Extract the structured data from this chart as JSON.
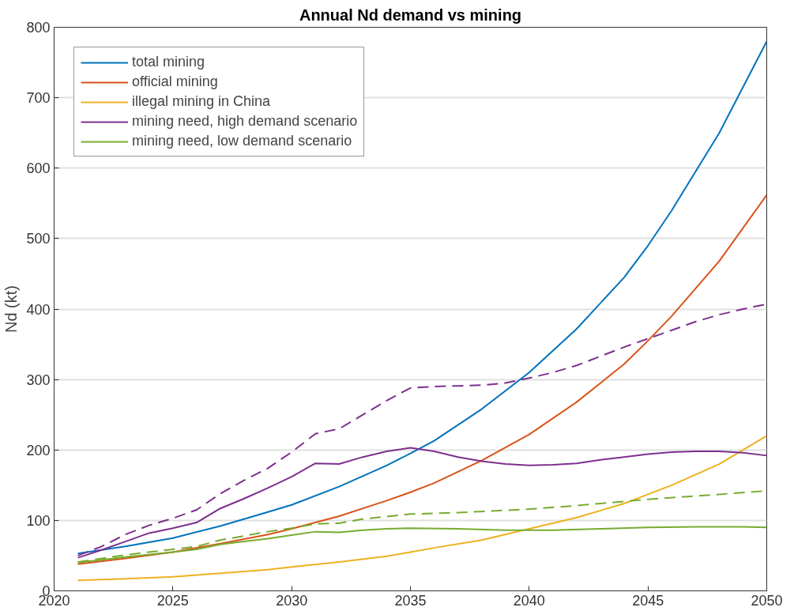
{
  "chart_data": {
    "type": "line",
    "title": "Annual Nd demand vs mining",
    "ylabel": "Nd (kt)",
    "xlim": [
      2020,
      2050
    ],
    "ylim": [
      0,
      800
    ],
    "xticks": [
      2020,
      2025,
      2030,
      2035,
      2040,
      2045,
      2050
    ],
    "yticks": [
      0,
      100,
      200,
      300,
      400,
      500,
      600,
      700,
      800
    ],
    "grid": "y",
    "legend": "top left",
    "line_style": "solid",
    "series": [
      {
        "name": "total mining",
        "color": "#0072bd",
        "x": [
          2021,
          2023,
          2025,
          2027,
          2029,
          2030,
          2032,
          2034,
          2035,
          2036,
          2038,
          2040,
          2042,
          2044,
          2045,
          2046,
          2048,
          2050
        ],
        "values": [
          53,
          63,
          75,
          92,
          112,
          122,
          148,
          178,
          195,
          213,
          258,
          310,
          372,
          445,
          490,
          540,
          650,
          780
        ]
      },
      {
        "name": "official mining",
        "color": "#d95319",
        "x": [
          2021,
          2023,
          2025,
          2027,
          2029,
          2030,
          2032,
          2034,
          2035,
          2036,
          2038,
          2040,
          2042,
          2044,
          2045,
          2046,
          2048,
          2050
        ],
        "values": [
          38,
          46,
          55,
          67,
          80,
          88,
          106,
          128,
          140,
          153,
          185,
          222,
          268,
          322,
          355,
          390,
          468,
          562
        ]
      },
      {
        "name": "illegal mining in China",
        "color": "#edb120",
        "x": [
          2021,
          2023,
          2025,
          2027,
          2029,
          2030,
          2032,
          2034,
          2035,
          2036,
          2038,
          2040,
          2042,
          2044,
          2045,
          2046,
          2048,
          2050
        ],
        "values": [
          15,
          17,
          20,
          25,
          30,
          34,
          41,
          49,
          55,
          61,
          72,
          88,
          104,
          124,
          137,
          150,
          180,
          220
        ]
      },
      {
        "name": "mining need, high demand scenario",
        "color": "#7e2f8e",
        "x": [
          2021,
          2022,
          2023,
          2024,
          2025,
          2026,
          2027,
          2028,
          2029,
          2030,
          2031,
          2032,
          2033,
          2034,
          2035,
          2036,
          2037,
          2038,
          2039,
          2040,
          2041,
          2042,
          2043,
          2044,
          2045,
          2046,
          2047,
          2048,
          2049,
          2050
        ],
        "values": [
          47,
          58,
          70,
          82,
          89,
          97,
          117,
          131,
          146,
          162,
          181,
          180,
          190,
          198,
          203,
          198,
          190,
          184,
          180,
          178,
          179,
          181,
          186,
          190,
          194,
          197,
          198,
          198,
          196,
          192
        ]
      },
      {
        "name": "mining need, low demand scenario",
        "color": "#77ac30",
        "x": [
          2021,
          2023,
          2025,
          2026,
          2027,
          2028,
          2029,
          2030,
          2031,
          2032,
          2033,
          2034,
          2035,
          2037,
          2039,
          2041,
          2043,
          2045,
          2047,
          2049,
          2050
        ],
        "values": [
          40,
          48,
          55,
          59,
          66,
          70,
          74,
          79,
          84,
          83,
          86,
          88,
          89,
          88,
          86,
          86,
          88,
          90,
          91,
          91,
          90
        ]
      },
      {
        "color": "#7e2f8e",
        "line_style": "dashed",
        "x": [
          2021,
          2022,
          2023,
          2024,
          2025,
          2026,
          2027,
          2028,
          2029,
          2030,
          2031,
          2032,
          2033,
          2034,
          2035,
          2036,
          2037,
          2038,
          2039,
          2040,
          2041,
          2042,
          2043,
          2044,
          2045,
          2046,
          2047,
          2048,
          2049,
          2050
        ],
        "values": [
          50,
          63,
          80,
          93,
          103,
          115,
          138,
          157,
          174,
          197,
          223,
          230,
          250,
          270,
          288,
          290,
          291,
          292,
          295,
          302,
          310,
          320,
          333,
          346,
          358,
          370,
          382,
          392,
          400,
          407
        ]
      },
      {
        "color": "#77ac30",
        "line_style": "dashed",
        "x": [
          2021,
          2023,
          2025,
          2026,
          2027,
          2028,
          2029,
          2030,
          2031,
          2032,
          2033,
          2035,
          2037,
          2040,
          2042,
          2045,
          2048,
          2050
        ],
        "values": [
          41,
          51,
          59,
          63,
          72,
          78,
          84,
          89,
          95,
          96,
          102,
          109,
          111,
          116,
          121,
          130,
          137,
          142
        ]
      }
    ]
  }
}
